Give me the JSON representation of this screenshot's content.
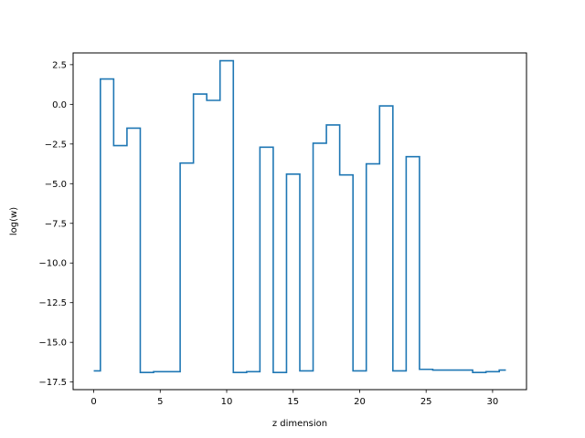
{
  "chart_data": {
    "type": "line",
    "drawstyle": "steps-mid",
    "title": "",
    "xlabel": "z dimension",
    "ylabel": "log(w)",
    "xlim": [
      -1.55,
      32.55
    ],
    "ylim": [
      -17.98,
      3.24
    ],
    "grid": false,
    "line_color": "#1f77b4",
    "xticks": [
      0,
      5,
      10,
      15,
      20,
      25,
      30
    ],
    "xtick_labels": [
      "0",
      "5",
      "10",
      "15",
      "20",
      "25",
      "30"
    ],
    "yticks": [
      2.5,
      0.0,
      -2.5,
      -5.0,
      -7.5,
      -10.0,
      -12.5,
      -15.0,
      -17.5
    ],
    "ytick_labels": [
      "2.5",
      "0.0",
      "−2.5",
      "−5.0",
      "−7.5",
      "−10.0",
      "−12.5",
      "−15.0",
      "−17.5"
    ],
    "series": [
      {
        "x": [
          0,
          1,
          2,
          3,
          4,
          5,
          6,
          7,
          8,
          9,
          10,
          11,
          12,
          13,
          14,
          15,
          16,
          17,
          18,
          19,
          20,
          21,
          22,
          23,
          24,
          25,
          26,
          27,
          28,
          29,
          30,
          31
        ],
        "values": [
          -16.8,
          1.6,
          -2.6,
          -1.5,
          -16.9,
          -16.85,
          -16.85,
          -3.7,
          0.65,
          0.25,
          2.75,
          -16.9,
          -16.85,
          -2.7,
          -16.9,
          -4.4,
          -16.8,
          -2.45,
          -1.3,
          -4.45,
          -16.8,
          -3.75,
          -0.1,
          -16.8,
          -3.3,
          -16.7,
          -16.75,
          -16.75,
          -16.75,
          -16.9,
          -16.85,
          -16.75
        ]
      }
    ]
  }
}
